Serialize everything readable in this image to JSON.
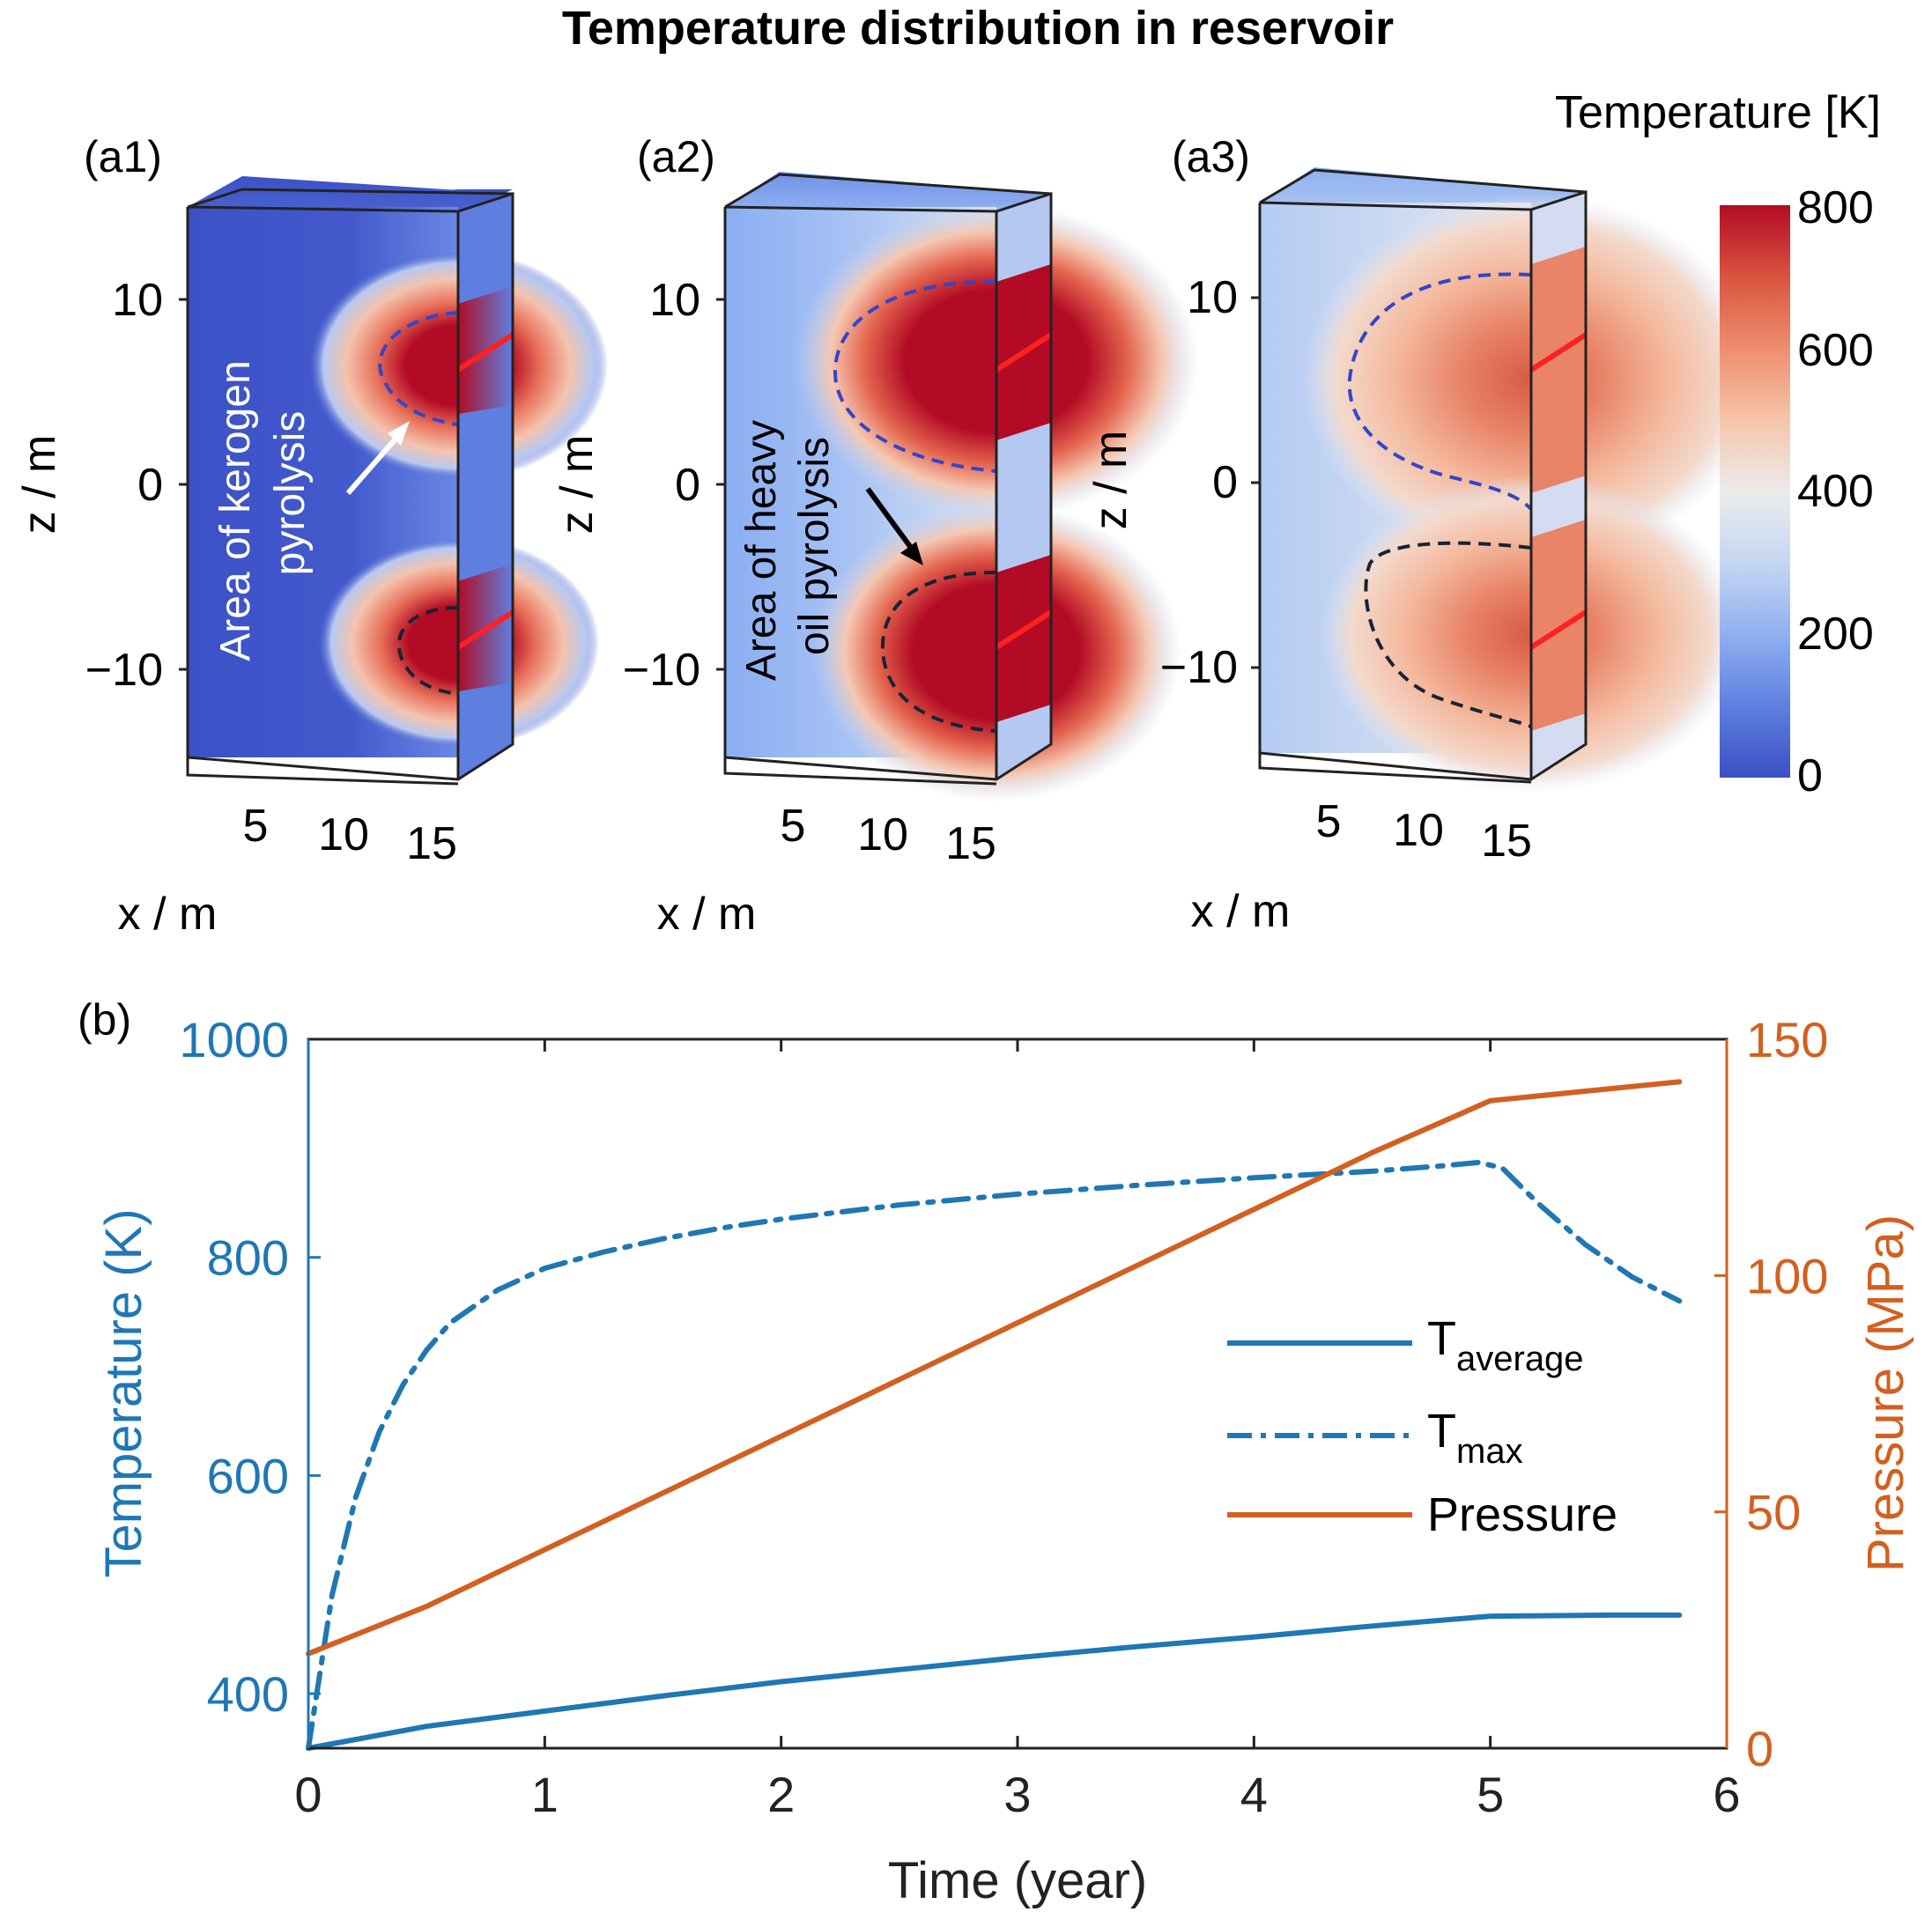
{
  "figure": {
    "title": "Temperature distribution in reservoir"
  },
  "colorbar": {
    "title": "Temperature [K]",
    "ticks": [
      "800",
      "600",
      "400",
      "200",
      "0"
    ],
    "range": [
      0,
      800
    ],
    "colors": [
      "#3a4fc4",
      "#5f7fe0",
      "#8fb0f0",
      "#c5d6f2",
      "#ececec",
      "#f6c5aa",
      "#ee8e6e",
      "#d9543f",
      "#b30b25"
    ]
  },
  "panels": [
    {
      "label": "(a1)",
      "zlabel": "z / m",
      "xlabel": "x / m",
      "zticks": [
        "10",
        "0",
        "−10"
      ],
      "xticks": [
        "5",
        "10",
        "15"
      ],
      "annotation": [
        "Area of kerogen",
        "pyrolysis"
      ],
      "annotation_color": "#ffffff"
    },
    {
      "label": "(a2)",
      "zlabel": "z / m",
      "xlabel": "x / m",
      "zticks": [
        "10",
        "0",
        "−10"
      ],
      "xticks": [
        "5",
        "10",
        "15"
      ],
      "annotation": [
        "Area of heavy",
        "oil pyrolysis"
      ],
      "annotation_color": "#000000"
    },
    {
      "label": "(a3)",
      "zlabel": "z / m",
      "xlabel": "x / m",
      "zticks": [
        "10",
        "0",
        "−10"
      ],
      "xticks": [
        "5",
        "10",
        "15"
      ],
      "annotation": [],
      "annotation_color": "#000000"
    }
  ],
  "chart_data": {
    "type": "line",
    "panel_label": "(b)",
    "xlabel": "Time (year)",
    "ylabel_left": "Temperature (K)",
    "ylabel_right": "Pressure (MPa)",
    "xlim": [
      0,
      6
    ],
    "ylim_left": [
      350,
      1000
    ],
    "ylim_right": [
      0,
      150
    ],
    "xticks": [
      0,
      1,
      2,
      3,
      4,
      5,
      6
    ],
    "yticks_left": [
      400,
      600,
      800,
      1000
    ],
    "yticks_right": [
      0,
      50,
      100,
      150
    ],
    "colors": {
      "temperature": "#1f77b4",
      "pressure": "#d35f20"
    },
    "series": [
      {
        "name": "T_average",
        "legend_main": "T",
        "legend_sub": "average",
        "axis": "left",
        "style": "solid",
        "x": [
          0,
          0.5,
          1,
          1.5,
          2,
          2.5,
          3,
          3.5,
          4,
          4.5,
          5,
          5.5,
          5.8
        ],
        "y": [
          350,
          370,
          384,
          398,
          411,
          422,
          433,
          443,
          452,
          462,
          471,
          472,
          472
        ]
      },
      {
        "name": "T_max",
        "legend_main": "T",
        "legend_sub": "max",
        "axis": "left",
        "style": "dashdot",
        "x": [
          0,
          0.05,
          0.1,
          0.2,
          0.3,
          0.4,
          0.5,
          0.6,
          0.8,
          1,
          1.25,
          1.5,
          1.75,
          2,
          2.5,
          3,
          3.5,
          4,
          4.5,
          4.8,
          4.95,
          5.05,
          5.2,
          5.4,
          5.6,
          5.8
        ],
        "y": [
          350,
          420,
          490,
          580,
          640,
          683,
          715,
          740,
          770,
          790,
          805,
          817,
          827,
          835,
          848,
          858,
          866,
          873,
          879,
          884,
          887,
          882,
          850,
          812,
          782,
          760
        ]
      },
      {
        "name": "Pressure",
        "legend_main": "Pressure",
        "legend_sub": "",
        "axis": "right",
        "style": "solid",
        "x": [
          0,
          0.5,
          1,
          2,
          3,
          4,
          4.5,
          5,
          5.8
        ],
        "y": [
          20,
          30,
          42,
          66,
          90,
          114,
          126,
          137,
          141
        ]
      }
    ]
  }
}
